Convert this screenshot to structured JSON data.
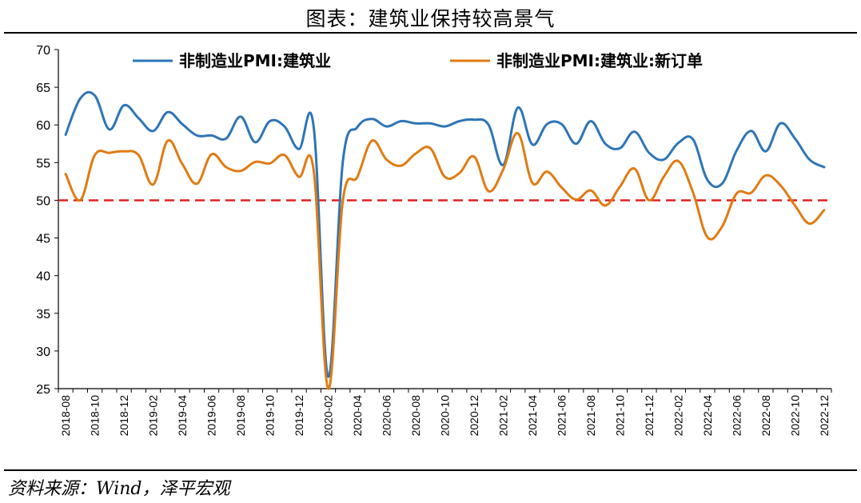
{
  "title": "图表：建筑业保持较高景气",
  "source": "资料来源：Wind，泽平宏观",
  "colors": {
    "series1": "#2E75B6",
    "series2": "#E07B12",
    "refline": "#E02020"
  },
  "chart_data": {
    "type": "line",
    "ylim": [
      25,
      70
    ],
    "yticks": [
      "70",
      "65",
      "60",
      "55",
      "50",
      "45",
      "40",
      "35",
      "30",
      "25"
    ],
    "xtick_labels": [
      "2018-08",
      "2018-10",
      "2018-12",
      "2019-02",
      "2019-04",
      "2019-06",
      "2019-08",
      "2019-10",
      "2019-12",
      "2020-02",
      "2020-04",
      "2020-06",
      "2020-08",
      "2020-10",
      "2020-12",
      "2021-02",
      "2021-04",
      "2021-06",
      "2021-08",
      "2021-10",
      "2021-12",
      "2022-02",
      "2022-04",
      "2022-06",
      "2022-08",
      "2022-10",
      "2022-12"
    ],
    "x": [
      "2018-08",
      "2018-09",
      "2018-10",
      "2018-11",
      "2018-12",
      "2019-01",
      "2019-02",
      "2019-03",
      "2019-04",
      "2019-05",
      "2019-06",
      "2019-07",
      "2019-08",
      "2019-09",
      "2019-10",
      "2019-11",
      "2019-12",
      "2020-01",
      "2020-02",
      "2020-03",
      "2020-04",
      "2020-05",
      "2020-06",
      "2020-07",
      "2020-08",
      "2020-09",
      "2020-10",
      "2020-11",
      "2020-12",
      "2021-01",
      "2021-02",
      "2021-03",
      "2021-04",
      "2021-05",
      "2021-06",
      "2021-07",
      "2021-08",
      "2021-09",
      "2021-10",
      "2021-11",
      "2021-12",
      "2022-01",
      "2022-02",
      "2022-03",
      "2022-04",
      "2022-05",
      "2022-06",
      "2022-07",
      "2022-08",
      "2022-09",
      "2022-10",
      "2022-11",
      "2022-12"
    ],
    "reference_line": {
      "value": 50,
      "style": "dashed"
    },
    "legend_position": "top",
    "grid": false,
    "series": [
      {
        "name": "非制造业PMI:建筑业",
        "values": [
          58.7,
          63.5,
          63.9,
          59.4,
          62.6,
          60.9,
          59.2,
          61.7,
          60.1,
          58.6,
          58.6,
          58.2,
          61.1,
          57.7,
          60.5,
          59.8,
          56.8,
          59.8,
          26.6,
          55.1,
          59.7,
          60.8,
          59.8,
          60.5,
          60.2,
          60.2,
          59.8,
          60.5,
          60.7,
          60.0,
          54.7,
          62.3,
          57.4,
          60.1,
          60.1,
          57.5,
          60.5,
          57.5,
          56.9,
          59.1,
          56.3,
          55.4,
          57.6,
          58.1,
          52.7,
          52.2,
          56.6,
          59.2,
          56.5,
          60.2,
          58.2,
          55.4,
          54.4
        ]
      },
      {
        "name": "非制造业PMI:建筑业:新订单",
        "values": [
          53.5,
          50.0,
          56.0,
          56.3,
          56.5,
          56.0,
          52.1,
          57.9,
          54.8,
          52.2,
          56.1,
          54.4,
          53.9,
          55.1,
          54.9,
          56.0,
          53.1,
          54.0,
          25.0,
          49.9,
          53.1,
          57.9,
          55.4,
          54.6,
          56.2,
          56.9,
          53.1,
          53.6,
          55.8,
          51.2,
          54.1,
          58.9,
          52.3,
          53.8,
          51.7,
          50.1,
          51.3,
          49.3,
          51.8,
          54.2,
          50.0,
          53.1,
          55.2,
          51.1,
          45.1,
          46.5,
          50.9,
          51.0,
          53.3,
          52.0,
          49.3,
          46.9,
          48.7
        ]
      }
    ]
  }
}
